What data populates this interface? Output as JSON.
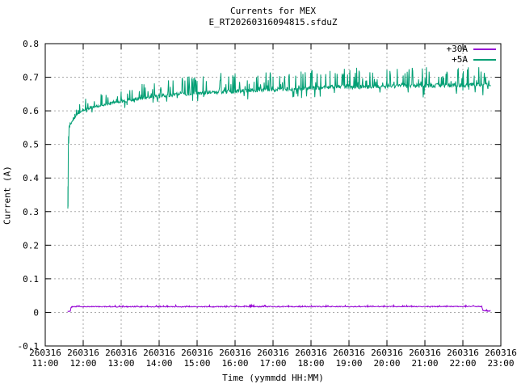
{
  "chart_data": {
    "type": "line",
    "title": "Currents for MEX",
    "subtitle": "E_RT20260316094815.sfduZ",
    "xlabel": "Time (yymmdd HH:MM)",
    "ylabel": "Current (A)",
    "ylim": [
      -0.1,
      0.8
    ],
    "x_hours": [
      11,
      23
    ],
    "grid": true,
    "grid_color": "#aaaaaa",
    "axis_color": "#000000",
    "legend_position": "top-right",
    "y_tick_values": [
      -0.1,
      0,
      0.1,
      0.2,
      0.3,
      0.4,
      0.5,
      0.6,
      0.7,
      0.8
    ],
    "y_tick_labels": [
      "-0.1",
      "0",
      "0.1",
      "0.2",
      "0.3",
      "0.4",
      "0.5",
      "0.6",
      "0.7",
      "0.8"
    ],
    "x_ticks": [
      {
        "hour": 11,
        "date": "260316",
        "time": "11:00"
      },
      {
        "hour": 12,
        "date": "260316",
        "time": "12:00"
      },
      {
        "hour": 13,
        "date": "260316",
        "time": "13:00"
      },
      {
        "hour": 14,
        "date": "260316",
        "time": "14:00"
      },
      {
        "hour": 15,
        "date": "260316",
        "time": "15:00"
      },
      {
        "hour": 16,
        "date": "260316",
        "time": "16:00"
      },
      {
        "hour": 17,
        "date": "260316",
        "time": "17:00"
      },
      {
        "hour": 18,
        "date": "260316",
        "time": "18:00"
      },
      {
        "hour": 19,
        "date": "260316",
        "time": "19:00"
      },
      {
        "hour": 20,
        "date": "260316",
        "time": "20:00"
      },
      {
        "hour": 21,
        "date": "260316",
        "time": "21:00"
      },
      {
        "hour": 22,
        "date": "260316",
        "time": "22:00"
      },
      {
        "hour": 23,
        "date": "260316",
        "time": "23:00"
      }
    ],
    "sample_step": 0.012,
    "seed": 20260316,
    "series": [
      {
        "name": "+30A",
        "color": "#9400d3",
        "anchors": [
          [
            11.595,
            0.002
          ],
          [
            11.6,
            0.003
          ],
          [
            11.64,
            0.003
          ],
          [
            11.66,
            0.004
          ],
          [
            11.68,
            0.015
          ],
          [
            11.7,
            0.0165
          ],
          [
            12.0,
            0.017
          ],
          [
            14.0,
            0.017
          ],
          [
            16.0,
            0.017
          ],
          [
            18.0,
            0.0172
          ],
          [
            20.0,
            0.0172
          ],
          [
            22.0,
            0.0175
          ],
          [
            22.45,
            0.0175
          ],
          [
            22.5,
            0.017
          ],
          [
            22.53,
            0.006
          ],
          [
            22.58,
            0.005
          ],
          [
            22.65,
            0.0045
          ],
          [
            22.73,
            0.004
          ]
        ],
        "noise": {
          "jitter": 0.0012,
          "up_prob": 0.1,
          "up_max": 0.004,
          "down_prob": 0.04,
          "down_max": 0.0015,
          "scale_anchors": [
            [
              11.595,
              0.2
            ],
            [
              11.7,
              1.0
            ],
            [
              22.73,
              1.0
            ]
          ]
        }
      },
      {
        "name": "+5A",
        "color": "#009e73",
        "anchors": [
          [
            11.595,
            0.31
          ],
          [
            11.598,
            0.375
          ],
          [
            11.601,
            0.315
          ],
          [
            11.606,
            0.46
          ],
          [
            11.612,
            0.525
          ],
          [
            11.618,
            0.502
          ],
          [
            11.627,
            0.548
          ],
          [
            11.645,
            0.553
          ],
          [
            11.67,
            0.56
          ],
          [
            11.72,
            0.571
          ],
          [
            11.78,
            0.58
          ],
          [
            11.85,
            0.589
          ],
          [
            11.93,
            0.596
          ],
          [
            12.0,
            0.601
          ],
          [
            12.25,
            0.611
          ],
          [
            12.5,
            0.617
          ],
          [
            13.0,
            0.628
          ],
          [
            13.5,
            0.637
          ],
          [
            14.0,
            0.644
          ],
          [
            14.5,
            0.649
          ],
          [
            15.0,
            0.653
          ],
          [
            15.5,
            0.656
          ],
          [
            16.0,
            0.659
          ],
          [
            16.5,
            0.661
          ],
          [
            17.0,
            0.663
          ],
          [
            17.5,
            0.665
          ],
          [
            18.0,
            0.668
          ],
          [
            18.5,
            0.67
          ],
          [
            19.0,
            0.671
          ],
          [
            19.5,
            0.672
          ],
          [
            20.0,
            0.673
          ],
          [
            20.5,
            0.674
          ],
          [
            21.0,
            0.675
          ],
          [
            21.5,
            0.676
          ],
          [
            22.0,
            0.677
          ],
          [
            22.3,
            0.677
          ],
          [
            22.73,
            0.678
          ]
        ],
        "noise": {
          "jitter": 0.006,
          "up_prob": 0.2,
          "up_max": 0.055,
          "down_prob": 0.06,
          "down_max": 0.032,
          "scale_anchors": [
            [
              11.595,
              0.05
            ],
            [
              11.66,
              0.2
            ],
            [
              11.9,
              0.5
            ],
            [
              12.5,
              0.7
            ],
            [
              15.0,
              0.95
            ],
            [
              19.0,
              1.0
            ],
            [
              22.73,
              1.05
            ]
          ]
        }
      }
    ]
  }
}
